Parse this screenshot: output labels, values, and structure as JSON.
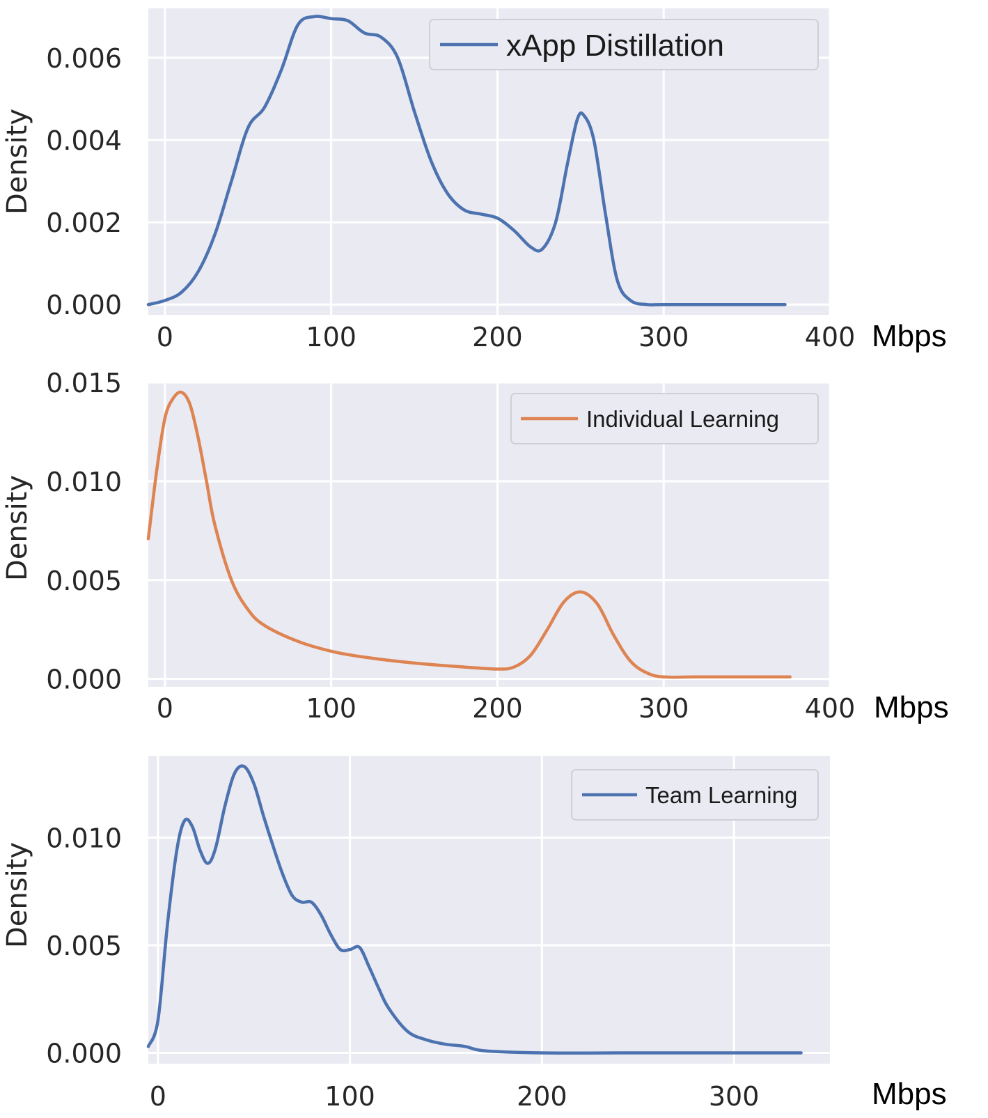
{
  "chart_data": [
    {
      "type": "line",
      "ylabel": "Density",
      "xlabel": "",
      "unit_label": "Mbps",
      "xlim": [
        -10,
        400
      ],
      "ylim": [
        -0.00025,
        0.0072
      ],
      "x_ticks": [
        "0",
        "100",
        "200",
        "300",
        "400"
      ],
      "y_ticks": [
        "0.000",
        "0.002",
        "0.004",
        "0.006"
      ],
      "grid": true,
      "legend_position": "top-right",
      "series": [
        {
          "name": "xApp Distillation",
          "color": "#4c72b0",
          "x": [
            -10,
            0,
            10,
            20,
            30,
            40,
            50,
            60,
            70,
            80,
            90,
            100,
            110,
            120,
            130,
            140,
            150,
            160,
            170,
            180,
            190,
            200,
            210,
            220,
            227,
            235,
            242,
            248,
            252,
            258,
            265,
            272,
            280,
            290,
            300,
            350,
            373
          ],
          "y": [
            0.0,
            0.0001,
            0.0003,
            0.0008,
            0.0017,
            0.003,
            0.0043,
            0.0048,
            0.0057,
            0.0068,
            0.007,
            0.00695,
            0.0069,
            0.0066,
            0.0065,
            0.006,
            0.0047,
            0.0035,
            0.0027,
            0.0023,
            0.0022,
            0.0021,
            0.0018,
            0.0014,
            0.00135,
            0.002,
            0.0034,
            0.0045,
            0.0046,
            0.004,
            0.0022,
            0.0006,
            0.0001,
            0.0,
            0.0,
            0.0,
            0.0
          ]
        }
      ]
    },
    {
      "type": "line",
      "ylabel": "Density",
      "xlabel": "",
      "unit_label": "Mbps",
      "xlim": [
        -10,
        400
      ],
      "ylim": [
        -0.0004,
        0.015
      ],
      "x_ticks": [
        "0",
        "100",
        "200",
        "300",
        "400"
      ],
      "y_ticks": [
        "0.000",
        "0.005",
        "0.010",
        "0.015"
      ],
      "grid": true,
      "legend_position": "top-right",
      "series": [
        {
          "name": "Individual Learning",
          "color": "#dd8452",
          "x": [
            -10,
            -5,
            0,
            5,
            10,
            15,
            20,
            25,
            30,
            40,
            50,
            60,
            80,
            100,
            120,
            150,
            180,
            200,
            210,
            220,
            230,
            240,
            250,
            260,
            270,
            280,
            290,
            300,
            320,
            350,
            376
          ],
          "y": [
            0.0071,
            0.0105,
            0.0132,
            0.0142,
            0.0145,
            0.0139,
            0.0122,
            0.01,
            0.0078,
            0.005,
            0.0035,
            0.0027,
            0.0019,
            0.0014,
            0.0011,
            0.0008,
            0.0006,
            0.0005,
            0.0006,
            0.0012,
            0.0025,
            0.0039,
            0.0044,
            0.0038,
            0.0022,
            0.0009,
            0.0003,
            0.0001,
            0.0001,
            0.0001,
            0.0001
          ]
        }
      ]
    },
    {
      "type": "line",
      "ylabel": "Density",
      "xlabel": "",
      "unit_label": "Mbps",
      "xlim": [
        -5,
        350
      ],
      "ylim": [
        -0.0005,
        0.0138
      ],
      "x_ticks": [
        "0",
        "100",
        "200",
        "300"
      ],
      "y_ticks": [
        "0.000",
        "0.005",
        "0.010"
      ],
      "grid": true,
      "legend_position": "top-right",
      "series": [
        {
          "name": "Team Learning",
          "color": "#4c72b0",
          "x": [
            -5,
            0,
            5,
            10,
            14,
            18,
            22,
            26,
            30,
            35,
            40,
            45,
            50,
            55,
            60,
            65,
            70,
            75,
            80,
            85,
            90,
            95,
            100,
            105,
            110,
            115,
            120,
            130,
            140,
            150,
            160,
            170,
            200,
            250,
            300,
            335
          ],
          "y": [
            0.0003,
            0.0015,
            0.006,
            0.0095,
            0.0108,
            0.0105,
            0.0094,
            0.0088,
            0.0095,
            0.0115,
            0.013,
            0.0133,
            0.0125,
            0.011,
            0.0096,
            0.0083,
            0.0073,
            0.007,
            0.007,
            0.0064,
            0.0055,
            0.0048,
            0.0048,
            0.0049,
            0.004,
            0.003,
            0.0021,
            0.001,
            0.0006,
            0.0004,
            0.0003,
            0.0001,
            0.0,
            0.0,
            0.0,
            0.0
          ]
        }
      ]
    }
  ]
}
